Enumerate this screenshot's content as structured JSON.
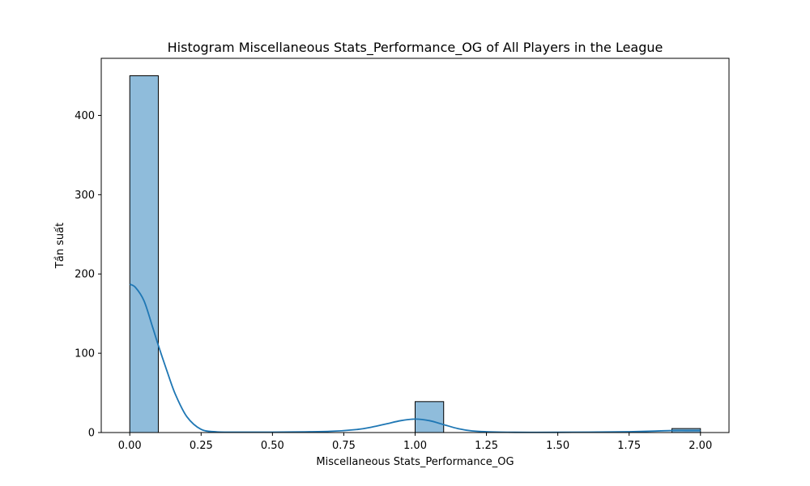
{
  "chart_data": {
    "type": "bar",
    "subtype": "histogram",
    "title": "Histogram Miscellaneous Stats_Performance_OG of All Players in the League",
    "xlabel": "Miscellaneous Stats_Performance_OG",
    "ylabel": "Tần suất",
    "xlim": [
      -0.1,
      2.1
    ],
    "ylim": [
      0,
      472
    ],
    "x_ticks": [
      0.0,
      0.25,
      0.5,
      0.75,
      1.0,
      1.25,
      1.5,
      1.75,
      2.0
    ],
    "x_tick_labels": [
      "0.00",
      "0.25",
      "0.50",
      "0.75",
      "1.00",
      "1.25",
      "1.50",
      "1.75",
      "2.00"
    ],
    "y_ticks": [
      0,
      100,
      200,
      300,
      400
    ],
    "y_tick_labels": [
      "0",
      "100",
      "200",
      "300",
      "400"
    ],
    "bins": [
      {
        "start": 0.0,
        "end": 0.1,
        "count": 450
      },
      {
        "start": 1.0,
        "end": 1.1,
        "count": 39
      },
      {
        "start": 1.9,
        "end": 2.0,
        "count": 5
      }
    ],
    "kde": {
      "x": [
        0.0,
        0.02,
        0.05,
        0.08,
        0.1,
        0.13,
        0.16,
        0.2,
        0.25,
        0.3,
        0.35,
        0.5,
        0.7,
        0.8,
        0.85,
        0.9,
        0.95,
        1.0,
        1.05,
        1.1,
        1.15,
        1.2,
        1.3,
        1.5,
        1.75,
        1.85,
        1.9,
        1.95,
        2.0
      ],
      "y": [
        187,
        183,
        166,
        133,
        110,
        78,
        48,
        20,
        4,
        1,
        0.5,
        0.5,
        1.5,
        4,
        7,
        11,
        15,
        17,
        15,
        10,
        5,
        2,
        0.5,
        0.3,
        1,
        2,
        2.5,
        2.5,
        2.5
      ]
    },
    "grid": false,
    "legend": "none",
    "colors": {
      "bar_fill": "#8fbcdb",
      "bar_edge": "#000000",
      "kde_line": "#1f77b4"
    }
  }
}
